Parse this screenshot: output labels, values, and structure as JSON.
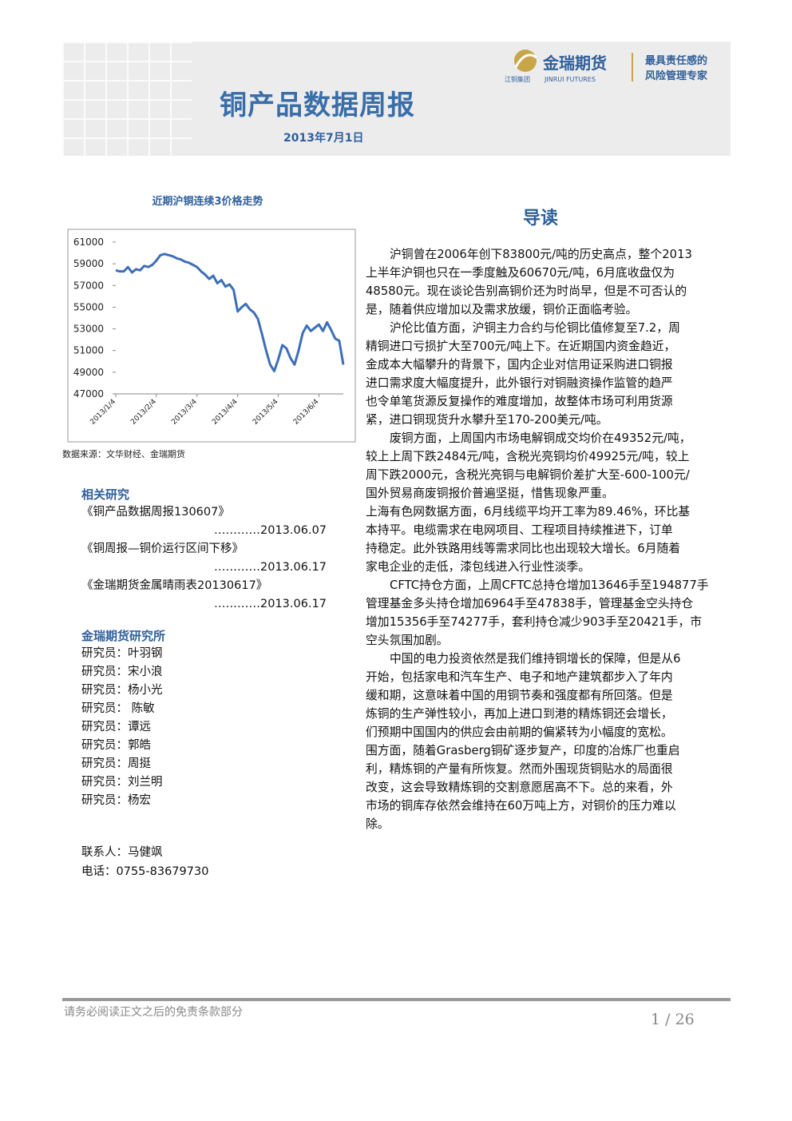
{
  "header": {
    "title": "铜产品数据周报",
    "date": "2013年7月1日",
    "logo_name": "金瑞期货",
    "logo_en": "JINRUI FUTURES",
    "logo_group": "江铜集团",
    "slogan_1": "最具责任感的",
    "slogan_2": "风险管理专家"
  },
  "chart_data": {
    "type": "line",
    "title": "近期沪铜连续3价格走势",
    "categories": [
      "2013/1/4",
      null,
      null,
      null,
      null,
      null,
      null,
      null,
      null,
      null,
      "2013/2/4",
      null,
      null,
      null,
      null,
      null,
      null,
      null,
      null,
      null,
      "2013/3/4",
      null,
      null,
      null,
      null,
      null,
      null,
      null,
      null,
      null,
      "2013/4/4",
      null,
      null,
      null,
      null,
      null,
      null,
      null,
      null,
      null,
      "2013/5/4",
      null,
      null,
      null,
      null,
      null,
      null,
      null,
      null,
      null,
      "2013/6/4",
      null,
      null,
      null,
      null,
      null,
      null
    ],
    "series": [
      {
        "color": "#3d6fb6",
        "values": [
          58400,
          58300,
          58300,
          58700,
          58200,
          58500,
          58400,
          58800,
          58700,
          58900,
          59300,
          59800,
          59900,
          59800,
          59700,
          59500,
          59400,
          59200,
          59100,
          58900,
          58700,
          58300,
          58000,
          57600,
          57900,
          57200,
          57500,
          56900,
          57100,
          56600,
          54600,
          55000,
          55300,
          54800,
          54500,
          53900,
          52500,
          51000,
          49700,
          49100,
          50200,
          51500,
          51200,
          50300,
          49700,
          51000,
          52600,
          53300,
          52800,
          53100,
          53400,
          52800,
          53600,
          52900,
          52100,
          51900,
          49700
        ]
      }
    ],
    "ylim": [
      47000,
      61000
    ],
    "yticks": [
      47000,
      49000,
      51000,
      53000,
      55000,
      57000,
      59000,
      61000
    ]
  },
  "chart_source": "数据来源：文华财经、金瑞期货",
  "related": {
    "heading": "相关研究",
    "items": [
      {
        "title": "《铜产品数据周报130607》",
        "date": "…………2013.06.07"
      },
      {
        "title": "《铜周报—铜价运行区间下移》",
        "date": "…………2013.06.17"
      },
      {
        "title": "《金瑞期货金属晴雨表20130617》",
        "date": "…………2013.06.17"
      }
    ]
  },
  "institute": {
    "heading": "金瑞期货研究所",
    "members": [
      "研究员：叶羽钢",
      "研究员：宋小浪",
      "研究员：杨小光",
      "研究员： 陈敏",
      "研究员：谭远",
      "研究员：郭皓",
      "研究员：周挺",
      "研究员：刘兰明",
      "研究员：杨宏"
    ]
  },
  "contact": {
    "person": "联系人：马健飒",
    "phone": "电话：0755-83679730"
  },
  "guide": {
    "heading": "导读",
    "paragraphs": [
      {
        "lines": [
          "沪铜曾在2006年创下83800元/吨的历史高点，整个2013",
          "上半年沪铜也只在一季度触及60670元/吨，6月底收盘仅为",
          "48580元。现在谈论告别高铜价还为时尚早，但是不可否认的",
          "是，随着供应增加以及需求放缓，铜价正面临考验。"
        ]
      },
      {
        "lines": [
          "沪伦比值方面，沪铜主力合约与伦铜比值修复至7.2，周",
          "精铜进口亏损扩大至700元/吨上下。在近期国内资金趋近，",
          "金成本大幅攀升的背景下，国内企业对信用证采购进口铜报",
          "进口需求度大幅度提升，此外银行对铜融资操作监管的趋严",
          "也令单笔货源反复操作的难度增加，故整体市场可利用货源",
          "紧，进口铜现货升水攀升至170-200美元/吨。"
        ]
      },
      {
        "lines": [
          "废铜方面，上周国内市场电解铜成交均价在49352元/吨，",
          "较上上周下跌2484元/吨，含税光亮铜均价49925元/吨，较上",
          "周下跌2000元，含税光亮铜与电解铜价差扩大至-600-100元/",
          "国外贸易商废铜报价普遍坚挺，惜售现象严重。"
        ]
      },
      {
        "lines": [
          "上海有色网数据方面，6月线缆平均开工率为89.46%，环比基",
          "本持平。电缆需求在电网项目、工程项目持续推进下，订单",
          "持稳定。此外铁路用线等需求同比也出现较大增长。6月随着",
          "家电企业的走低，漆包线进入行业性淡季。"
        ]
      },
      {
        "lines": [
          "CFTC持仓方面，上周CFTC总持仓增加13646手至194877手",
          "管理基金多头持仓增加6964手至47838手，管理基金空头持仓",
          "增加15356手至74277手，套利持仓减少903手至20421手，市",
          "空头氛围加剧。"
        ]
      },
      {
        "lines": [
          "中国的电力投资依然是我们维持铜增长的保障，但是从6",
          "开始，包括家电和汽车生产、电子和地产建筑都步入了年内",
          "缓和期，这意味着中国的用铜节奏和强度都有所回落。但是",
          "炼铜的生产弹性较小，再加上进口到港的精炼铜还会增长，",
          "们预期中国国内的供应会由前期的偏紧转为小幅度的宽松。",
          "围方面，随着Grasberg铜矿逐步复产，印度的冶炼厂也重启",
          "利，精炼铜的产量有所恢复。然而外围现货铜贴水的局面很",
          "改变，这会导致精炼铜的交割意愿居高不下。总的来看，外",
          "市场的铜库存依然会维持在60万吨上方，对铜价的压力难以",
          "除。"
        ]
      }
    ]
  },
  "footer": {
    "disclaimer": "请务必阅读正文之后的免责条款部分",
    "page": "1 / 26"
  }
}
